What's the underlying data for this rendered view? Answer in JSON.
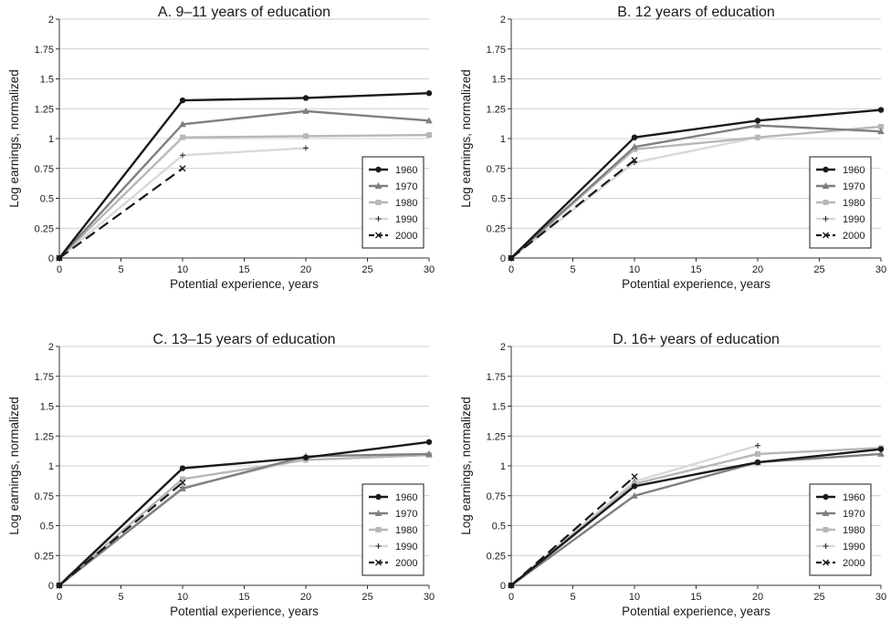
{
  "chart_data": [
    {
      "type": "line",
      "title": "A. 9–11 years of education",
      "xlabel": "Potential experience, years",
      "ylabel": "Log earnings, normalized",
      "xlim": [
        0,
        30
      ],
      "ylim": [
        0,
        2
      ],
      "xticks": [
        0,
        5,
        10,
        15,
        20,
        25,
        30
      ],
      "yticks": [
        "0",
        "0.25",
        "0.5",
        "0.75",
        "1",
        "1.25",
        "1.5",
        "1.75",
        "2"
      ],
      "grid": "horizontal",
      "legend_position": "right",
      "series": [
        {
          "name": "1960",
          "x": [
            0,
            10,
            20,
            30
          ],
          "y": [
            0,
            1.32,
            1.34,
            1.38
          ]
        },
        {
          "name": "1970",
          "x": [
            0,
            10,
            20,
            30
          ],
          "y": [
            0,
            1.12,
            1.23,
            1.15
          ]
        },
        {
          "name": "1980",
          "x": [
            0,
            10,
            20,
            30
          ],
          "y": [
            0,
            1.01,
            1.02,
            1.03
          ]
        },
        {
          "name": "1990",
          "x": [
            0,
            10,
            20
          ],
          "y": [
            0,
            0.86,
            0.92
          ]
        },
        {
          "name": "2000",
          "x": [
            0,
            10
          ],
          "y": [
            0,
            0.75
          ]
        }
      ]
    },
    {
      "type": "line",
      "title": "B. 12 years of education",
      "xlabel": "Potential experience, years",
      "ylabel": "Log earnings, normalized",
      "xlim": [
        0,
        30
      ],
      "ylim": [
        0,
        2
      ],
      "xticks": [
        0,
        5,
        10,
        15,
        20,
        25,
        30
      ],
      "yticks": [
        "0",
        "0.25",
        "0.5",
        "0.75",
        "1",
        "1.25",
        "1.5",
        "1.75",
        "2"
      ],
      "grid": "horizontal",
      "legend_position": "right",
      "series": [
        {
          "name": "1960",
          "x": [
            0,
            10,
            20,
            30
          ],
          "y": [
            0,
            1.01,
            1.15,
            1.24
          ]
        },
        {
          "name": "1970",
          "x": [
            0,
            10,
            20,
            30
          ],
          "y": [
            0,
            0.93,
            1.11,
            1.06
          ]
        },
        {
          "name": "1980",
          "x": [
            0,
            10,
            20,
            30
          ],
          "y": [
            0,
            0.91,
            1.01,
            1.1
          ]
        },
        {
          "name": "1990",
          "x": [
            0,
            10,
            20
          ],
          "y": [
            0,
            0.8,
            1.01
          ]
        },
        {
          "name": "2000",
          "x": [
            0,
            10
          ],
          "y": [
            0,
            0.82
          ]
        }
      ]
    },
    {
      "type": "line",
      "title": "C. 13–15 years of education",
      "xlabel": "Potential experience, years",
      "ylabel": "Log earnings, normalized",
      "xlim": [
        0,
        30
      ],
      "ylim": [
        0,
        2
      ],
      "xticks": [
        0,
        5,
        10,
        15,
        20,
        25,
        30
      ],
      "yticks": [
        "0",
        "0.25",
        "0.5",
        "0.75",
        "1",
        "1.25",
        "1.5",
        "1.75",
        "2"
      ],
      "grid": "horizontal",
      "legend_position": "right",
      "series": [
        {
          "name": "1960",
          "x": [
            0,
            10,
            20,
            30
          ],
          "y": [
            0,
            0.98,
            1.07,
            1.2
          ]
        },
        {
          "name": "1970",
          "x": [
            0,
            10,
            20,
            30
          ],
          "y": [
            0,
            0.81,
            1.08,
            1.1
          ]
        },
        {
          "name": "1980",
          "x": [
            0,
            10,
            20,
            30
          ],
          "y": [
            0,
            0.89,
            1.05,
            1.09
          ]
        },
        {
          "name": "1990",
          "x": [
            0,
            10,
            20
          ],
          "y": [
            0,
            0.82,
            1.06
          ]
        },
        {
          "name": "2000",
          "x": [
            0,
            10
          ],
          "y": [
            0,
            0.86
          ]
        }
      ]
    },
    {
      "type": "line",
      "title": "D. 16+ years of education",
      "xlabel": "Potential experience, years",
      "ylabel": "Log earnings, normalized",
      "xlim": [
        0,
        30
      ],
      "ylim": [
        0,
        2
      ],
      "xticks": [
        0,
        5,
        10,
        15,
        20,
        25,
        30
      ],
      "yticks": [
        "0",
        "0.25",
        "0.5",
        "0.75",
        "1",
        "1.25",
        "1.5",
        "1.75",
        "2"
      ],
      "grid": "horizontal",
      "legend_position": "right",
      "series": [
        {
          "name": "1960",
          "x": [
            0,
            10,
            20,
            30
          ],
          "y": [
            0,
            0.83,
            1.03,
            1.14
          ]
        },
        {
          "name": "1970",
          "x": [
            0,
            10,
            20,
            30
          ],
          "y": [
            0,
            0.75,
            1.03,
            1.1
          ]
        },
        {
          "name": "1980",
          "x": [
            0,
            10,
            20,
            30
          ],
          "y": [
            0,
            0.85,
            1.1,
            1.15
          ]
        },
        {
          "name": "1990",
          "x": [
            0,
            10,
            20
          ],
          "y": [
            0,
            0.87,
            1.17
          ]
        },
        {
          "name": "2000",
          "x": [
            0,
            10
          ],
          "y": [
            0,
            0.91
          ]
        }
      ]
    }
  ],
  "styles": {
    "1960": {
      "color": "#1a1a1a",
      "width": 2.4,
      "dash": "",
      "marker": "circle"
    },
    "1970": {
      "color": "#7f7f7f",
      "width": 2.4,
      "dash": "",
      "marker": "triangle"
    },
    "1980": {
      "color": "#b7b7b7",
      "width": 2.4,
      "dash": "",
      "marker": "square"
    },
    "1990": {
      "color": "#d9d9d9",
      "width": 2.4,
      "dash": "",
      "marker": "plus"
    },
    "2000": {
      "color": "#1a1a1a",
      "width": 2.2,
      "dash": "12 6",
      "marker": "x"
    }
  },
  "colors": {
    "grid": "#bfbfbf",
    "axis": "#333333",
    "marker_1990": "#333333"
  }
}
